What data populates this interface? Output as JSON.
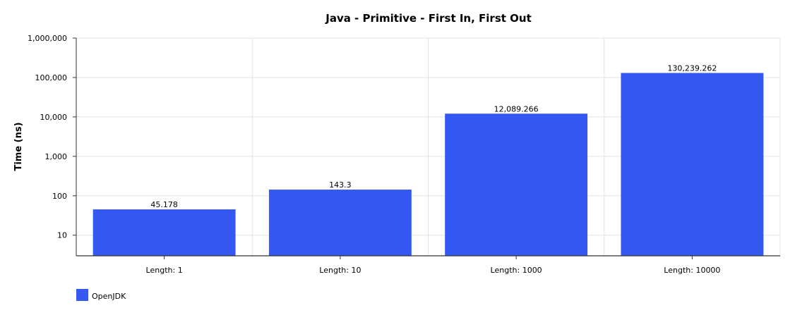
{
  "chart_data": {
    "type": "bar",
    "title": "Java - Primitive - First In, First Out",
    "xlabel": "",
    "ylabel": "Time (ns)",
    "yscale": "log",
    "ylim": [
      3,
      1000000
    ],
    "yticks": [
      10,
      100,
      1000,
      10000,
      100000,
      1000000
    ],
    "ytick_labels": [
      "10",
      "100",
      "1,000",
      "10,000",
      "100,000",
      "1,000,000"
    ],
    "categories": [
      "Length: 1",
      "Length: 10",
      "Length: 1000",
      "Length: 10000"
    ],
    "series": [
      {
        "name": "OpenJDK",
        "color": "#3558f2",
        "values": [
          45.178,
          143.3,
          12089.266,
          130239.262
        ],
        "labels": [
          "45.178",
          "143.3",
          "12,089.266",
          "130,239.262"
        ]
      }
    ],
    "grid": true,
    "legend": "bottom-left"
  }
}
